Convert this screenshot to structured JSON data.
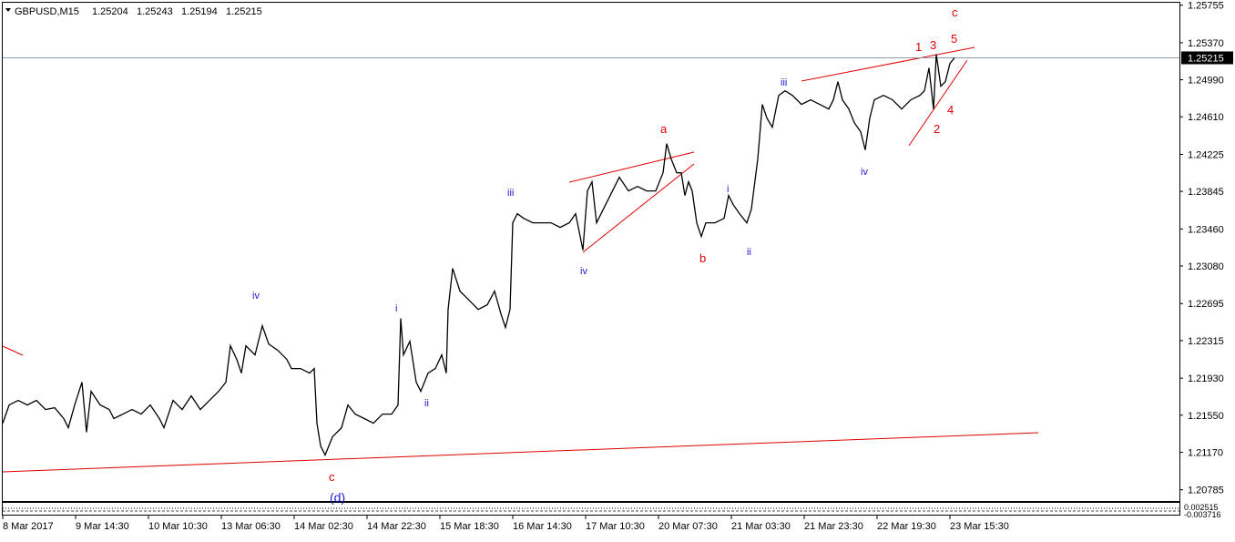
{
  "chart_data": {
    "type": "line",
    "symbol": "GBPUSD,M15",
    "ohlc": [
      1.25204,
      1.25243,
      1.25194,
      1.25215
    ],
    "last_price": 1.25215,
    "color": "#000000",
    "grid": false,
    "x": [
      0,
      7,
      17,
      27,
      37,
      47,
      57,
      67,
      72,
      79,
      87,
      92,
      97,
      107,
      117,
      122,
      132,
      142,
      152,
      162,
      172,
      177,
      187,
      197,
      207,
      217,
      227,
      237,
      245,
      250,
      257,
      262,
      267,
      277,
      285,
      292,
      302,
      312,
      317,
      327,
      337,
      342,
      345,
      349,
      354,
      362,
      372,
      379,
      387,
      397,
      407,
      417,
      427,
      434,
      437,
      440,
      447,
      454,
      459,
      467,
      475,
      482,
      487,
      489,
      494,
      502,
      512,
      522,
      532,
      540,
      547,
      552,
      557,
      560,
      565,
      572,
      582,
      592,
      602,
      612,
      622,
      629,
      634,
      637,
      642,
      647,
      652,
      657,
      667,
      677,
      687,
      697,
      707,
      717,
      725,
      729,
      734,
      740,
      745,
      749,
      753,
      757,
      762,
      767,
      772,
      782,
      792,
      797,
      802,
      809,
      817,
      822,
      829,
      834,
      839,
      845,
      852,
      859,
      867,
      877,
      887,
      897,
      907,
      912,
      917,
      922,
      929,
      935,
      942,
      947,
      952,
      957,
      967,
      977,
      987,
      997,
      1007,
      1012,
      1017,
      1022,
      1025,
      1030,
      1035,
      1040,
      1045
    ],
    "values": [
      1.21468,
      1.21655,
      1.21701,
      1.21655,
      1.21701,
      1.21608,
      1.21627,
      1.21515,
      1.21421,
      1.21655,
      1.21888,
      1.21375,
      1.21795,
      1.21655,
      1.21608,
      1.21515,
      1.21561,
      1.21608,
      1.21561,
      1.21655,
      1.21515,
      1.21421,
      1.21701,
      1.21608,
      1.21748,
      1.21608,
      1.21701,
      1.21795,
      1.21888,
      1.22262,
      1.22122,
      1.21982,
      1.22262,
      1.22168,
      1.22467,
      1.22281,
      1.22215,
      1.22122,
      1.22028,
      1.22028,
      1.21982,
      1.22028,
      1.21468,
      1.21234,
      1.21141,
      1.21328,
      1.21421,
      1.21655,
      1.21561,
      1.21515,
      1.21468,
      1.21561,
      1.21561,
      1.21655,
      1.22542,
      1.22168,
      1.22309,
      1.21888,
      1.21795,
      1.21982,
      1.22028,
      1.22168,
      1.21982,
      1.22635,
      1.23056,
      1.22822,
      1.22729,
      1.22635,
      1.22682,
      1.22822,
      1.22589,
      1.22449,
      1.22635,
      1.23523,
      1.23616,
      1.23569,
      1.23523,
      1.23523,
      1.23523,
      1.23476,
      1.23523,
      1.23616,
      1.23383,
      1.23243,
      1.2385,
      1.23943,
      1.23523,
      1.23616,
      1.23803,
      1.2399,
      1.2385,
      1.23896,
      1.2385,
      1.2385,
      1.24036,
      1.24335,
      1.24177,
      1.24036,
      1.24036,
      1.23803,
      1.23943,
      1.2385,
      1.23523,
      1.23383,
      1.23523,
      1.23523,
      1.23569,
      1.23803,
      1.2371,
      1.23616,
      1.23523,
      1.23663,
      1.24177,
      1.24737,
      1.24597,
      1.24503,
      1.2483,
      1.24877,
      1.2483,
      1.24737,
      1.24784,
      1.24737,
      1.2469,
      1.24784,
      1.2497,
      1.24784,
      1.2469,
      1.2455,
      1.24457,
      1.2427,
      1.24597,
      1.24784,
      1.2483,
      1.24784,
      1.2469,
      1.24784,
      1.2483,
      1.24877,
      1.25111,
      1.2469,
      1.25251,
      1.24924,
      1.2497,
      1.25157,
      1.25215
    ],
    "xlim": [
      0,
      1292
    ],
    "xticks": [
      {
        "value": 0,
        "label": "8 Mar 2017"
      },
      {
        "value": 80,
        "label": "9 Mar 14:30"
      },
      {
        "value": 160,
        "label": "10 Mar 10:30"
      },
      {
        "value": 240,
        "label": "13 Mar 06:30"
      },
      {
        "value": 320,
        "label": "14 Mar 02:30"
      },
      {
        "value": 400,
        "label": "14 Mar 22:30"
      },
      {
        "value": 480,
        "label": "15 Mar 18:30"
      },
      {
        "value": 560,
        "label": "16 Mar 14:30"
      },
      {
        "value": 640,
        "label": "17 Mar 10:30"
      },
      {
        "value": 720,
        "label": "20 Mar 07:30"
      },
      {
        "value": 800,
        "label": "21 Mar 03:30"
      },
      {
        "value": 880,
        "label": "21 Mar 23:30"
      },
      {
        "value": 960,
        "label": "22 Mar 19:30"
      },
      {
        "value": 1040,
        "label": "23 Mar 15:30"
      }
    ],
    "ylim": [
      1.2067,
      1.2578
    ],
    "yticks": [
      1.25755,
      {
        "value": 1.2537,
        "label": "1.25370"
      },
      {
        "value": 1.2499,
        "label": "1.24990"
      },
      {
        "value": 1.2461,
        "label": "1.24610"
      },
      1.24225,
      1.23845,
      {
        "value": 1.2346,
        "label": "1.23460"
      },
      {
        "value": 1.2308,
        "label": "1.23080"
      },
      1.22695,
      1.22315,
      {
        "value": 1.2193,
        "label": "1.21930"
      },
      {
        "value": 1.2155,
        "label": "1.21550"
      },
      {
        "value": 1.2117,
        "label": "1.21170"
      },
      1.20785
    ],
    "annotations": [
      "c",
      "1",
      "3",
      "5",
      "4",
      "2",
      "a",
      "b",
      "iii",
      "iv",
      "i",
      "ii",
      "iii",
      "iv",
      "iv",
      "i",
      "ii",
      "c",
      "(d)"
    ],
    "indicator_labels": [
      "0.002515",
      "-0.003716"
    ]
  }
}
